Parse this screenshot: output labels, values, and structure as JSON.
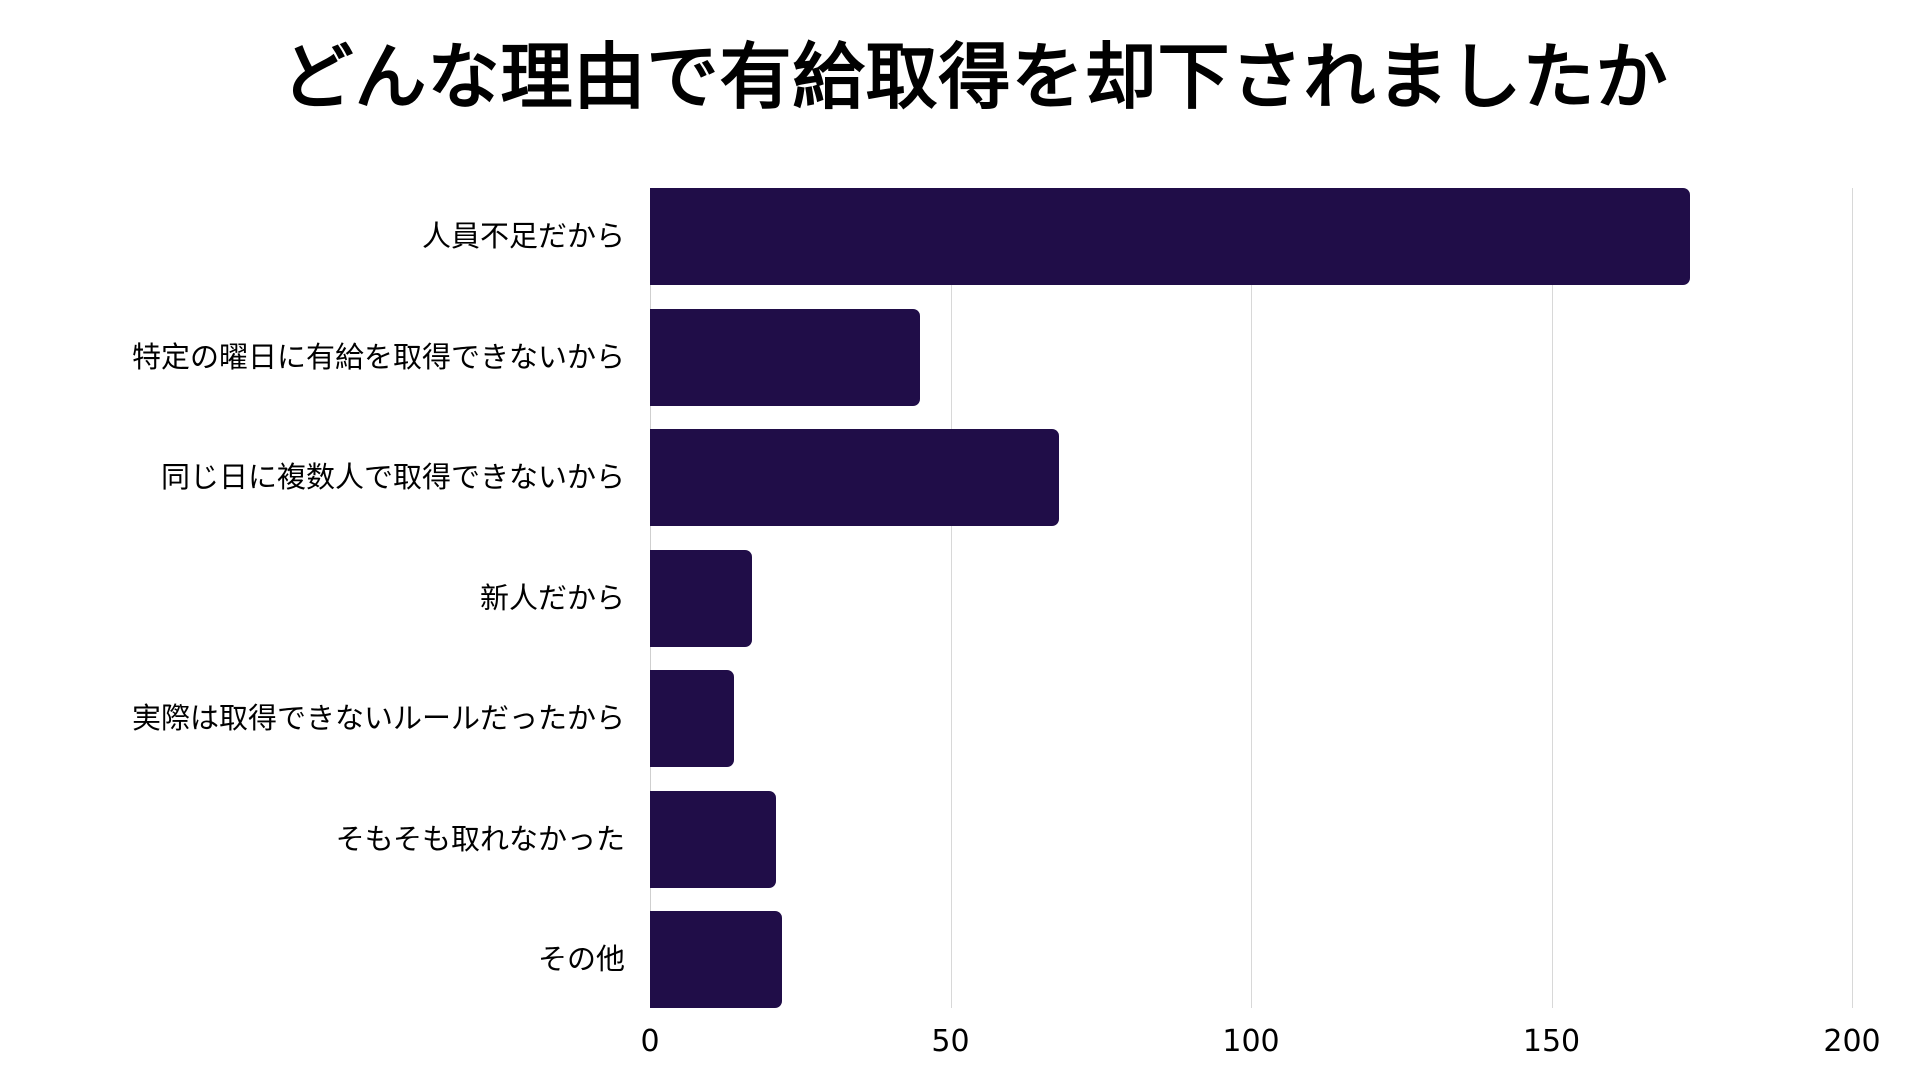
{
  "chart_data": {
    "type": "bar",
    "orientation": "horizontal",
    "title": "どんな理由で有給取得を却下されましたか",
    "xlabel": "",
    "ylabel": "",
    "xlim": [
      0,
      200
    ],
    "grid": true,
    "categories": [
      "人員不足だから",
      "特定の曜日に有給を取得できないから",
      "同じ日に複数人で取得できないから",
      "新人だから",
      "実際は取得できないルールだったから",
      "そもそも取れなかった",
      "その他"
    ],
    "values": [
      173,
      45,
      68,
      17,
      14,
      21,
      22
    ],
    "x_ticks": [
      "0",
      "50",
      "100",
      "150",
      "200"
    ],
    "bar_color": "#200d48"
  }
}
